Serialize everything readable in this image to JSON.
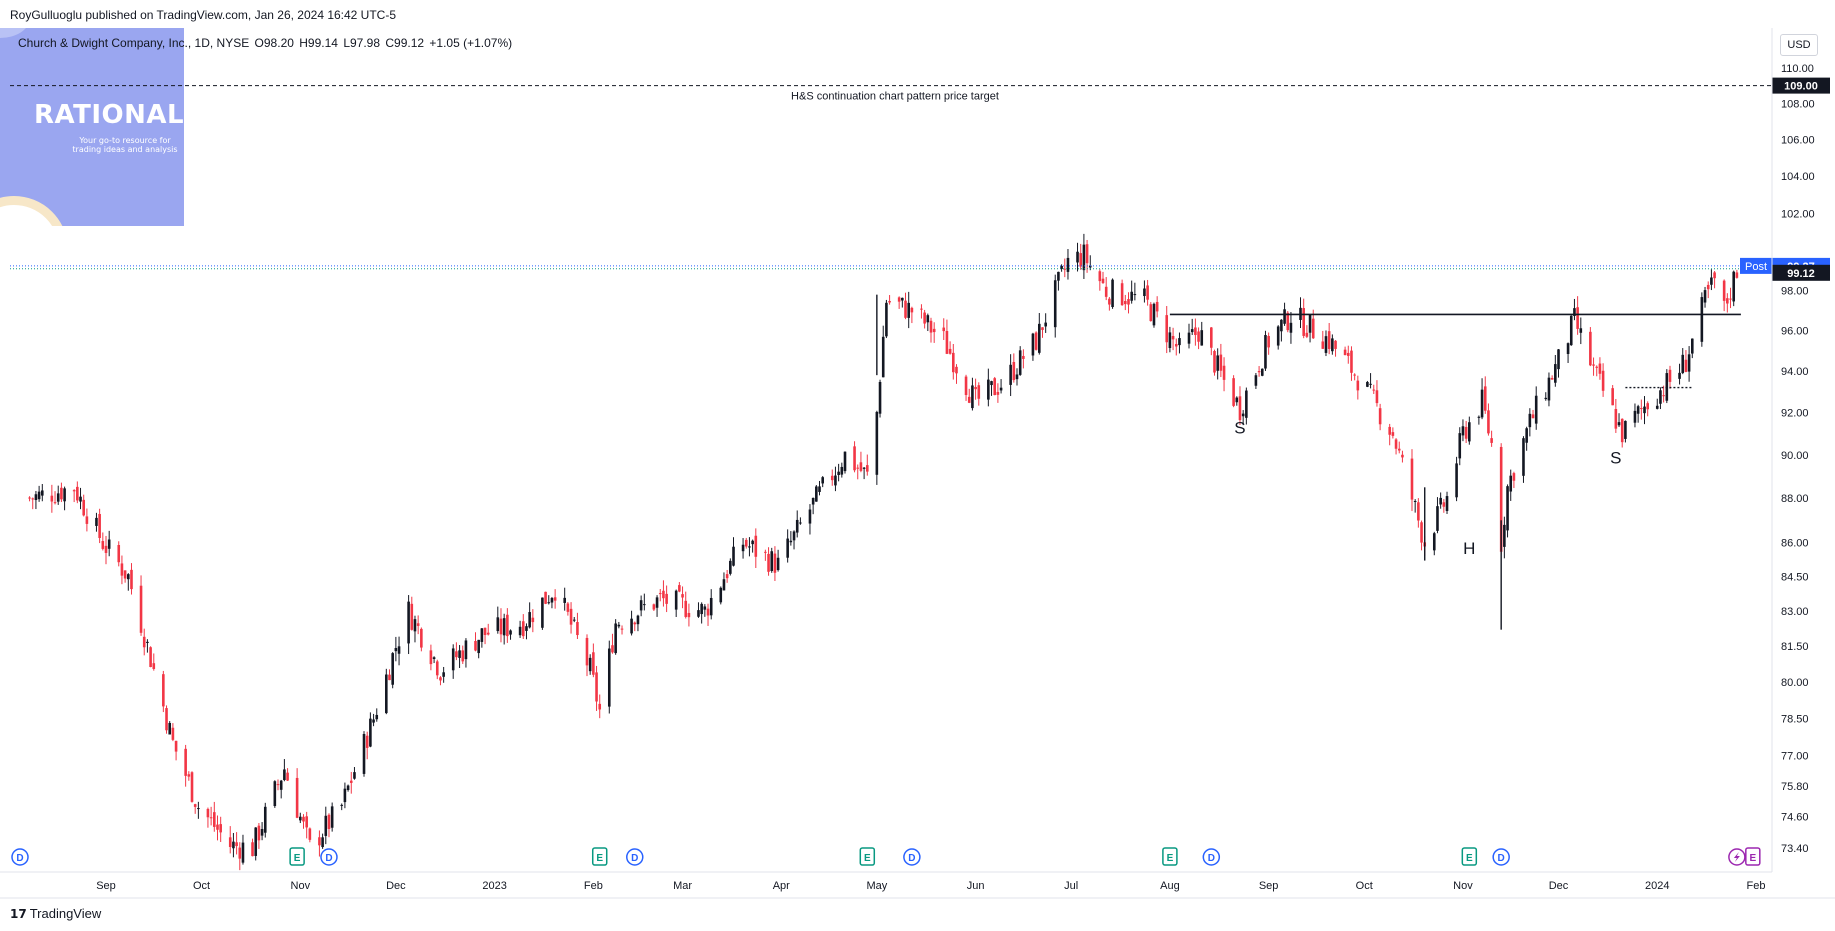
{
  "publisher": "RoyGulluoglu published on TradingView.com, Jan 26, 2024 16:42 UTC-5",
  "symbol": {
    "name": "Church & Dwight Company, Inc., 1D, NYSE",
    "open": "O98.20",
    "high": "H99.14",
    "low": "L97.98",
    "close": "C99.12",
    "change": "+1.05 (+1.07%)"
  },
  "watermark": {
    "title": "RATIONALE",
    "subtitle": "Your go-to resource for trading ideas and analysis"
  },
  "currency": "USD",
  "brand": "TradingView",
  "colors": {
    "up": "#131722",
    "down": "#f23645",
    "post": "#2962ff",
    "grid": "#f0f3fa"
  },
  "chart_data": {
    "type": "candlestick",
    "y_axis_ticks": [
      110.0,
      108.0,
      106.0,
      104.0,
      102.0,
      98.0,
      96.0,
      94.0,
      92.0,
      90.0,
      88.0,
      86.0,
      84.5,
      83.0,
      81.5,
      80.0,
      78.5,
      77.0,
      75.8,
      74.6,
      73.4
    ],
    "y_axis_labels": [
      "110.00",
      "108.00",
      "106.00",
      "104.00",
      "102.00",
      "98.00",
      "96.00",
      "94.00",
      "92.00",
      "90.00",
      "88.00",
      "86.00",
      "84.50",
      "83.00",
      "81.50",
      "80.00",
      "78.50",
      "77.00",
      "75.80",
      "74.60",
      "73.40"
    ],
    "y_scale": "log",
    "x_axis_labels": [
      {
        "label": "Sep",
        "date": "2022-09-01"
      },
      {
        "label": "Oct",
        "date": "2022-10-01"
      },
      {
        "label": "Nov",
        "date": "2022-11-01"
      },
      {
        "label": "Dec",
        "date": "2022-12-01"
      },
      {
        "label": "2023",
        "date": "2023-01-01"
      },
      {
        "label": "Feb",
        "date": "2023-02-01"
      },
      {
        "label": "Mar",
        "date": "2023-03-01"
      },
      {
        "label": "Apr",
        "date": "2023-04-01"
      },
      {
        "label": "May",
        "date": "2023-05-01"
      },
      {
        "label": "Jun",
        "date": "2023-06-01"
      },
      {
        "label": "Jul",
        "date": "2023-07-01"
      },
      {
        "label": "Aug",
        "date": "2023-08-01"
      },
      {
        "label": "Sep",
        "date": "2023-09-01"
      },
      {
        "label": "Oct",
        "date": "2023-10-01"
      },
      {
        "label": "Nov",
        "date": "2023-11-01"
      },
      {
        "label": "Dec",
        "date": "2023-12-01"
      },
      {
        "label": "2024",
        "date": "2024-01-01"
      },
      {
        "label": "Feb",
        "date": "2024-02-01"
      }
    ],
    "close_path": [
      {
        "date": "2022-08-08",
        "close": 88.0
      },
      {
        "date": "2022-08-22",
        "close": 88.5
      },
      {
        "date": "2022-08-31",
        "close": 86.0
      },
      {
        "date": "2022-09-08",
        "close": 84.5
      },
      {
        "date": "2022-09-15",
        "close": 81.0
      },
      {
        "date": "2022-09-22",
        "close": 77.5
      },
      {
        "date": "2022-09-30",
        "close": 75.0
      },
      {
        "date": "2022-10-10",
        "close": 73.5
      },
      {
        "date": "2022-10-17",
        "close": 73.4
      },
      {
        "date": "2022-10-27",
        "close": 76.5
      },
      {
        "date": "2022-11-04",
        "close": 73.4
      },
      {
        "date": "2022-11-14",
        "close": 75.0
      },
      {
        "date": "2022-11-24",
        "close": 78.5
      },
      {
        "date": "2022-12-01",
        "close": 81.5
      },
      {
        "date": "2022-12-05",
        "close": 83.0
      },
      {
        "date": "2022-12-15",
        "close": 80.5
      },
      {
        "date": "2022-12-28",
        "close": 82.0
      },
      {
        "date": "2023-01-10",
        "close": 82.5
      },
      {
        "date": "2023-01-20",
        "close": 84.0
      },
      {
        "date": "2023-01-31",
        "close": 80.5
      },
      {
        "date": "2023-02-03",
        "close": 78.8
      },
      {
        "date": "2023-02-08",
        "close": 82.5
      },
      {
        "date": "2023-02-22",
        "close": 83.5
      },
      {
        "date": "2023-03-08",
        "close": 83.0
      },
      {
        "date": "2023-03-20",
        "close": 86.0
      },
      {
        "date": "2023-03-31",
        "close": 85.0
      },
      {
        "date": "2023-04-10",
        "close": 87.5
      },
      {
        "date": "2023-04-21",
        "close": 90.0
      },
      {
        "date": "2023-04-28",
        "close": 89.0
      },
      {
        "date": "2023-05-01",
        "close": 92.0
      },
      {
        "date": "2023-05-04",
        "close": 97.5
      },
      {
        "date": "2023-05-12",
        "close": 97.0
      },
      {
        "date": "2023-05-22",
        "close": 95.5
      },
      {
        "date": "2023-06-01",
        "close": 92.5
      },
      {
        "date": "2023-06-10",
        "close": 93.5
      },
      {
        "date": "2023-06-20",
        "close": 95.5
      },
      {
        "date": "2023-06-30",
        "close": 99.5
      },
      {
        "date": "2023-07-05",
        "close": 99.8
      },
      {
        "date": "2023-07-12",
        "close": 98.0
      },
      {
        "date": "2023-07-24",
        "close": 97.5
      },
      {
        "date": "2023-08-04",
        "close": 95.0
      },
      {
        "date": "2023-08-10",
        "close": 96.0
      },
      {
        "date": "2023-08-18",
        "close": 93.5
      },
      {
        "date": "2023-08-23",
        "close": 92.2
      },
      {
        "date": "2023-09-01",
        "close": 95.5
      },
      {
        "date": "2023-09-08",
        "close": 96.8
      },
      {
        "date": "2023-09-20",
        "close": 95.5
      },
      {
        "date": "2023-09-30",
        "close": 93.5
      },
      {
        "date": "2023-10-10",
        "close": 91.0
      },
      {
        "date": "2023-10-20",
        "close": 86.0
      },
      {
        "date": "2023-10-27",
        "close": 88.0
      },
      {
        "date": "2023-11-01",
        "close": 91.0
      },
      {
        "date": "2023-11-07",
        "close": 92.5
      },
      {
        "date": "2023-11-10",
        "close": 90.5
      },
      {
        "date": "2023-11-13",
        "close": 86.0
      },
      {
        "date": "2023-11-15",
        "close": 88.5
      },
      {
        "date": "2023-11-22",
        "close": 91.5
      },
      {
        "date": "2023-12-01",
        "close": 94.5
      },
      {
        "date": "2023-12-06",
        "close": 96.5
      },
      {
        "date": "2023-12-12",
        "close": 94.0
      },
      {
        "date": "2023-12-18",
        "close": 92.0
      },
      {
        "date": "2023-12-21",
        "close": 91.0
      },
      {
        "date": "2023-12-29",
        "close": 92.5
      },
      {
        "date": "2024-01-05",
        "close": 93.5
      },
      {
        "date": "2024-01-10",
        "close": 94.5
      },
      {
        "date": "2024-01-16",
        "close": 97.5
      },
      {
        "date": "2024-01-19",
        "close": 98.5
      },
      {
        "date": "2024-01-22",
        "close": 97.0
      },
      {
        "date": "2024-01-26",
        "close": 99.12
      }
    ],
    "price_target": {
      "value": 109.0,
      "label": "H&S continuation chart pattern price target"
    },
    "neckline": {
      "value": 96.8,
      "from": "2023-08-01",
      "to": "2024-01-26"
    },
    "right_shoulder_consolidation": {
      "value": 93.2,
      "from": "2023-12-22",
      "to": "2024-01-12"
    },
    "last_close": {
      "value": 99.12,
      "label": "99.12"
    },
    "post_market": {
      "value": 99.27,
      "label": "99.27",
      "tag": "Post"
    },
    "pattern_labels": [
      {
        "text": "S",
        "date": "2023-08-23",
        "price": 91.0
      },
      {
        "text": "H",
        "date": "2023-11-03",
        "price": 85.5
      },
      {
        "text": "S",
        "date": "2023-12-19",
        "price": 89.6
      }
    ],
    "events": [
      {
        "type": "D",
        "date": "2022-08-05"
      },
      {
        "type": "E",
        "date": "2022-10-31"
      },
      {
        "type": "D",
        "date": "2022-11-10"
      },
      {
        "type": "E",
        "date": "2023-02-03"
      },
      {
        "type": "D",
        "date": "2023-02-14"
      },
      {
        "type": "E",
        "date": "2023-04-28"
      },
      {
        "type": "D",
        "date": "2023-05-12"
      },
      {
        "type": "E",
        "date": "2023-08-01"
      },
      {
        "type": "D",
        "date": "2023-08-14"
      },
      {
        "type": "E",
        "date": "2023-11-03"
      },
      {
        "type": "D",
        "date": "2023-11-13"
      },
      {
        "type": "S",
        "date": "2024-01-26"
      },
      {
        "type": "E",
        "date": "2024-01-31"
      }
    ]
  }
}
